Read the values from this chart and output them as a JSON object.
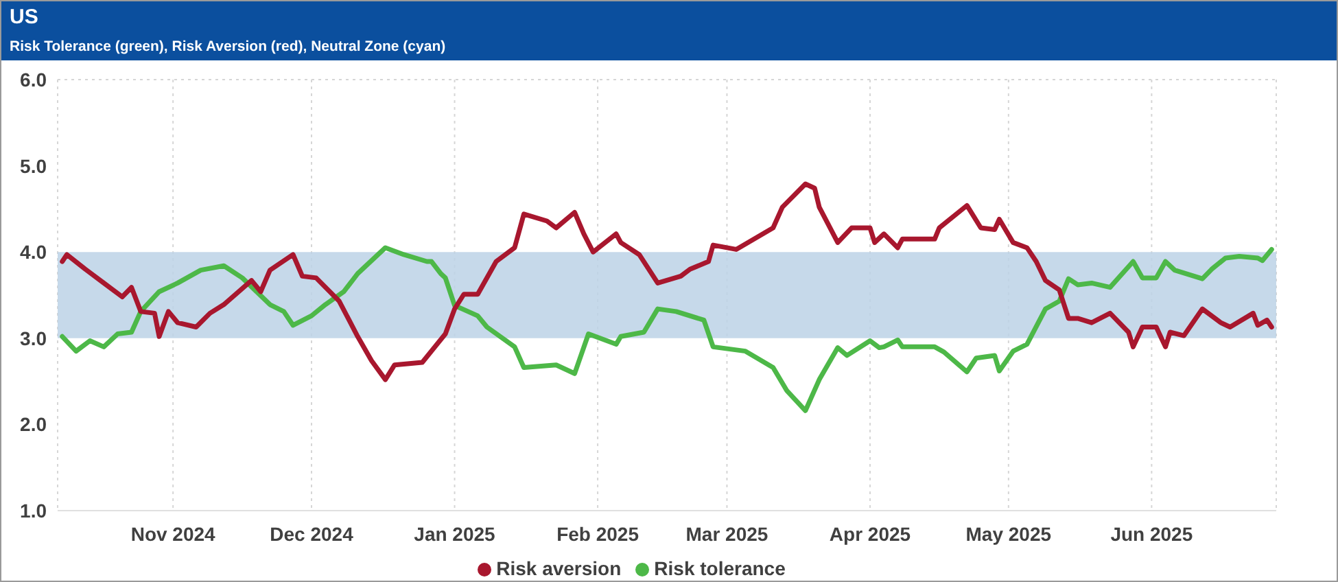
{
  "chart_data": {
    "type": "line",
    "title": "US",
    "subtitle": "Risk Tolerance (green), Risk Aversion (red), Neutral Zone (cyan)",
    "xlim": [
      "2024-10-07",
      "2025-06-28"
    ],
    "xticks": [
      {
        "value": "2024-11-01",
        "label": "Nov 2024"
      },
      {
        "value": "2024-12-01",
        "label": "Dec 2024"
      },
      {
        "value": "2025-01-01",
        "label": "Jan 2025"
      },
      {
        "value": "2025-02-01",
        "label": "Feb 2025"
      },
      {
        "value": "2025-03-01",
        "label": "Mar 2025"
      },
      {
        "value": "2025-04-01",
        "label": "Apr 2025"
      },
      {
        "value": "2025-05-01",
        "label": "May 2025"
      },
      {
        "value": "2025-06-01",
        "label": "Jun 2025"
      }
    ],
    "ylim": [
      1,
      6
    ],
    "yticks": [
      {
        "value": 1,
        "label": "1.0"
      },
      {
        "value": 2,
        "label": "2.0"
      },
      {
        "value": 3,
        "label": "3.0"
      },
      {
        "value": 4,
        "label": "4.0"
      },
      {
        "value": 5,
        "label": "5.0"
      },
      {
        "value": 6,
        "label": "6.0"
      }
    ],
    "grid": true,
    "legend": "bottom",
    "bands": [
      {
        "axis": "y",
        "from": 3,
        "to": 4,
        "color": "#bcd2e6"
      }
    ],
    "series": [
      {
        "name": "Risk tolerance",
        "color": "#4db848",
        "x": [
          "2024-10-08",
          "2024-10-11",
          "2024-10-14",
          "2024-10-17",
          "2024-10-20",
          "2024-10-23",
          "2024-10-25",
          "2024-10-29",
          "2024-11-02",
          "2024-11-07",
          "2024-11-12",
          "2024-11-16",
          "2024-11-22",
          "2024-11-25",
          "2024-11-27",
          "2024-12-01",
          "2024-12-04",
          "2024-12-08",
          "2024-12-11",
          "2024-12-17",
          "2024-12-21",
          "2024-12-26",
          "2024-12-27",
          "2024-12-29",
          "2024-12-30",
          "2025-01-01",
          "2025-01-06",
          "2025-01-08",
          "2025-01-14",
          "2025-01-16",
          "2025-01-23",
          "2025-01-27",
          "2025-01-30",
          "2025-02-05",
          "2025-02-06",
          "2025-02-11",
          "2025-02-14",
          "2025-02-18",
          "2025-02-24",
          "2025-02-26",
          "2025-03-05",
          "2025-03-11",
          "2025-03-14",
          "2025-03-18",
          "2025-03-21",
          "2025-03-25",
          "2025-03-27",
          "2025-04-01",
          "2025-04-03",
          "2025-04-04",
          "2025-04-07",
          "2025-04-08",
          "2025-04-15",
          "2025-04-17",
          "2025-04-22",
          "2025-04-24",
          "2025-04-28",
          "2025-04-29",
          "2025-05-02",
          "2025-05-05",
          "2025-05-09",
          "2025-05-12",
          "2025-05-14",
          "2025-05-16",
          "2025-05-19",
          "2025-05-23",
          "2025-05-28",
          "2025-05-30",
          "2025-06-02",
          "2025-06-04",
          "2025-06-06",
          "2025-06-12",
          "2025-06-14",
          "2025-06-17",
          "2025-06-20",
          "2025-06-24",
          "2025-06-25",
          "2025-06-27"
        ],
        "values": [
          3.02,
          2.85,
          2.97,
          2.9,
          3.05,
          3.07,
          3.31,
          3.54,
          3.64,
          3.79,
          3.84,
          3.7,
          3.39,
          3.31,
          3.15,
          3.26,
          3.39,
          3.54,
          3.75,
          4.05,
          3.97,
          3.89,
          3.89,
          3.75,
          3.7,
          3.38,
          3.26,
          3.13,
          2.9,
          2.66,
          2.69,
          2.59,
          3.05,
          2.93,
          3.02,
          3.07,
          3.34,
          3.31,
          3.21,
          2.9,
          2.85,
          2.66,
          2.39,
          2.16,
          2.52,
          2.89,
          2.8,
          2.97,
          2.89,
          2.9,
          2.98,
          2.9,
          2.9,
          2.84,
          2.61,
          2.77,
          2.8,
          2.62,
          2.85,
          2.93,
          3.34,
          3.43,
          3.69,
          3.62,
          3.64,
          3.59,
          3.89,
          3.7,
          3.7,
          3.89,
          3.79,
          3.69,
          3.8,
          3.93,
          3.95,
          3.93,
          3.9,
          4.03
        ]
      },
      {
        "name": "Risk aversion",
        "color": "#a8172e",
        "x": [
          "2024-10-08",
          "2024-10-09",
          "2024-10-13",
          "2024-10-17",
          "2024-10-21",
          "2024-10-23",
          "2024-10-25",
          "2024-10-28",
          "2024-10-29",
          "2024-10-31",
          "2024-11-02",
          "2024-11-06",
          "2024-11-09",
          "2024-11-12",
          "2024-11-18",
          "2024-11-20",
          "2024-11-22",
          "2024-11-27",
          "2024-11-29",
          "2024-12-02",
          "2024-12-07",
          "2024-12-11",
          "2024-12-14",
          "2024-12-17",
          "2024-12-19",
          "2024-12-25",
          "2024-12-30",
          "2025-01-01",
          "2025-01-03",
          "2025-01-06",
          "2025-01-10",
          "2025-01-14",
          "2025-01-16",
          "2025-01-21",
          "2025-01-23",
          "2025-01-27",
          "2025-01-29",
          "2025-01-31",
          "2025-02-05",
          "2025-02-06",
          "2025-02-10",
          "2025-02-14",
          "2025-02-19",
          "2025-02-21",
          "2025-02-25",
          "2025-02-26",
          "2025-03-03",
          "2025-03-11",
          "2025-03-13",
          "2025-03-18",
          "2025-03-20",
          "2025-03-21",
          "2025-03-25",
          "2025-03-28",
          "2025-04-01",
          "2025-04-02",
          "2025-04-04",
          "2025-04-07",
          "2025-04-08",
          "2025-04-15",
          "2025-04-16",
          "2025-04-22",
          "2025-04-25",
          "2025-04-28",
          "2025-04-29",
          "2025-05-02",
          "2025-05-05",
          "2025-05-07",
          "2025-05-09",
          "2025-05-12",
          "2025-05-14",
          "2025-05-16",
          "2025-05-19",
          "2025-05-23",
          "2025-05-27",
          "2025-05-28",
          "2025-05-30",
          "2025-06-02",
          "2025-06-04",
          "2025-06-05",
          "2025-06-08",
          "2025-06-12",
          "2025-06-16",
          "2025-06-18",
          "2025-06-23",
          "2025-06-24",
          "2025-06-26",
          "2025-06-27"
        ],
        "values": [
          3.89,
          3.97,
          3.8,
          3.64,
          3.48,
          3.59,
          3.31,
          3.29,
          3.02,
          3.31,
          3.18,
          3.13,
          3.29,
          3.39,
          3.67,
          3.54,
          3.79,
          3.97,
          3.72,
          3.7,
          3.43,
          3.02,
          2.74,
          2.52,
          2.69,
          2.72,
          3.05,
          3.34,
          3.51,
          3.51,
          3.89,
          4.05,
          4.44,
          4.36,
          4.28,
          4.46,
          4.21,
          4.0,
          4.21,
          4.11,
          3.97,
          3.64,
          3.72,
          3.8,
          3.89,
          4.08,
          4.03,
          4.28,
          4.52,
          4.79,
          4.74,
          4.52,
          4.11,
          4.28,
          4.28,
          4.11,
          4.21,
          4.05,
          4.15,
          4.15,
          4.28,
          4.54,
          4.28,
          4.26,
          4.38,
          4.11,
          4.05,
          3.89,
          3.67,
          3.56,
          3.23,
          3.23,
          3.18,
          3.29,
          3.07,
          2.9,
          3.13,
          3.13,
          2.9,
          3.07,
          3.03,
          3.34,
          3.18,
          3.13,
          3.29,
          3.15,
          3.21,
          3.13
        ]
      }
    ]
  }
}
